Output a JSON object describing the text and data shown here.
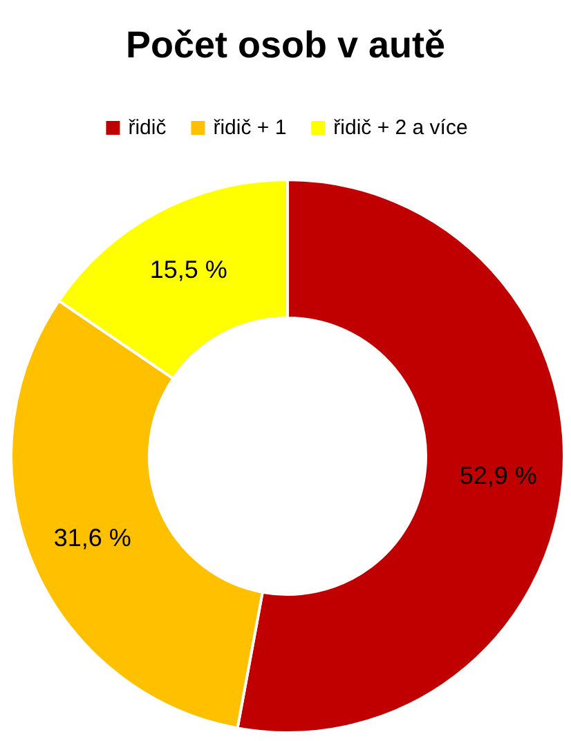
{
  "chart_data": {
    "type": "donut",
    "title": "Počet osob v autě",
    "categories": [
      "řidič",
      "řidič + 1",
      "řidič + 2 a více"
    ],
    "values": [
      52.9,
      31.6,
      15.5
    ],
    "colors": [
      "#c00000",
      "#ffc000",
      "#ffff00"
    ],
    "value_labels": [
      "52,9 %",
      "31,6 %",
      "15,5 %"
    ],
    "legend": "top"
  }
}
